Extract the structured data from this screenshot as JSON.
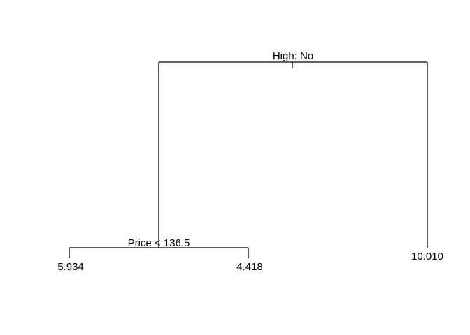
{
  "tree": {
    "root_split": "High: No",
    "left_split": "Price < 136.5",
    "leaves": {
      "left_left": "5.934",
      "left_right": "4.418",
      "right": "10.010"
    }
  }
}
